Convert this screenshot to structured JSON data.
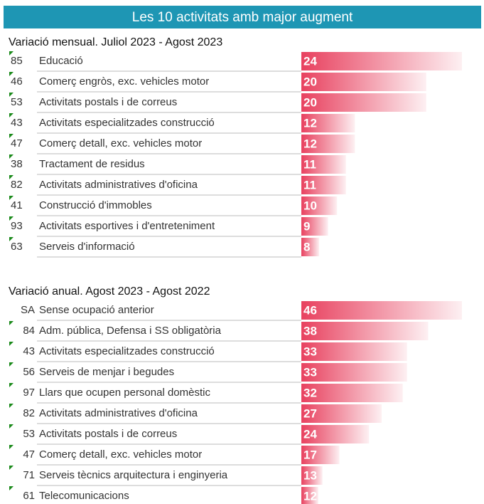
{
  "header": {
    "title": "Les 10 activitats amb major augment"
  },
  "chart_data": [
    {
      "type": "bar",
      "orientation": "horizontal",
      "title": "Variació mensual. Juliol 2023 - Agost 2023",
      "codes": [
        "85",
        "46",
        "53",
        "43",
        "47",
        "38",
        "82",
        "41",
        "93",
        "63"
      ],
      "categories": [
        "Educació",
        "Comerç engròs, exc. vehicles motor",
        "Activitats postals i de correus",
        "Activitats especialitzades construcció",
        "Comerç detall, exc. vehicles motor",
        "Tractament de residus",
        "Activitats administratives d'oficina",
        "Construcció d'immobles",
        "Activitats esportives i d'entreteniment",
        "Serveis d'informació"
      ],
      "values": [
        24,
        20,
        20,
        12,
        12,
        11,
        11,
        10,
        9,
        8
      ],
      "color": "#e8415f",
      "xlim": [
        6,
        24
      ]
    },
    {
      "type": "bar",
      "orientation": "horizontal",
      "title": "Variació anual.  Agost 2023 - Agost 2022",
      "codes": [
        "SA",
        "84",
        "43",
        "56",
        "97",
        "82",
        "53",
        "47",
        "71",
        "61"
      ],
      "categories": [
        "Sense ocupació anterior",
        "Adm. pública, Defensa i SS obligatòria",
        "Activitats especialitzades construcció",
        "Serveis de menjar i begudes",
        "Llars que ocupen personal domèstic",
        "Activitats administratives d'oficina",
        "Activitats postals i de correus",
        "Comerç detall, exc. vehicles motor",
        "Serveis tècnics arquitectura i enginyeria",
        "Telecomunicacions"
      ],
      "values": [
        46,
        38,
        33,
        33,
        32,
        27,
        24,
        17,
        13,
        12
      ],
      "color": "#e8415f",
      "xlim": [
        8,
        46
      ]
    }
  ]
}
